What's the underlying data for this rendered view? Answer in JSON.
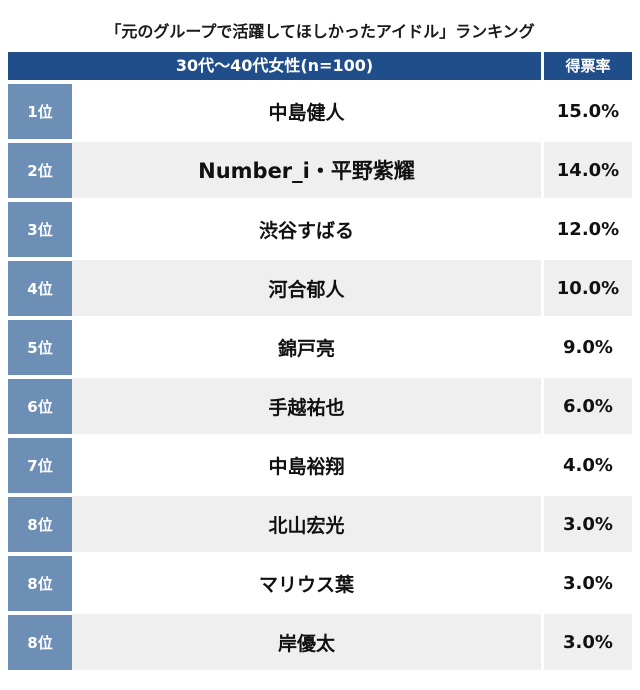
{
  "chart_data": {
    "type": "table",
    "title": "「元のグループで活躍してほしかったアイドル」ランキング",
    "columns": [
      "30代〜40代女性(n=100)",
      "得票率"
    ],
    "rows": [
      {
        "rank": "1位",
        "name": "中島健人",
        "rate": "15.0%",
        "value": 15.0
      },
      {
        "rank": "2位",
        "name": "Number_i・平野紫耀",
        "rate": "14.0%",
        "value": 14.0
      },
      {
        "rank": "3位",
        "name": "渋谷すばる",
        "rate": "12.0%",
        "value": 12.0
      },
      {
        "rank": "4位",
        "name": "河合郁人",
        "rate": "10.0%",
        "value": 10.0
      },
      {
        "rank": "5位",
        "name": "錦戸亮",
        "rate": "9.0%",
        "value": 9.0
      },
      {
        "rank": "6位",
        "name": "手越祐也",
        "rate": "6.0%",
        "value": 6.0
      },
      {
        "rank": "7位",
        "name": "中島裕翔",
        "rate": "4.0%",
        "value": 4.0
      },
      {
        "rank": "8位",
        "name": "北山宏光",
        "rate": "3.0%",
        "value": 3.0
      },
      {
        "rank": "8位",
        "name": "マリウス葉",
        "rate": "3.0%",
        "value": 3.0
      },
      {
        "rank": "8位",
        "name": "岸優太",
        "rate": "3.0%",
        "value": 3.0
      }
    ]
  },
  "colors": {
    "header_bg": "#1f4e8a",
    "rank_bg": "#6e8fb5",
    "alt_row_bg": "#efefef"
  }
}
